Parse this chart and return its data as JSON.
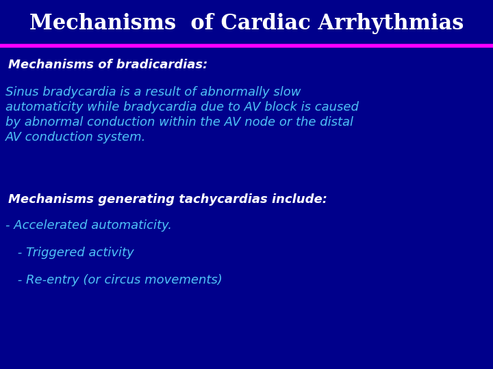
{
  "title": "Mechanisms  of Cardiac Arrhythmias",
  "title_color": "#ffffff",
  "title_fontsize": 22,
  "body_bg_color": "#00008B",
  "separator_color": "#FF00FF",
  "heading1": "Mechanisms of bradicardias:",
  "heading1_color": "#ffffff",
  "heading1_fontsize": 13,
  "body1_line1": "Sinus bradycardia is a result of abnormally slow",
  "body1_line2": "automaticity while bradycardia due to AV block is caused",
  "body1_line3": "by abnormal conduction within the AV node or the distal",
  "body1_line4": "AV conduction system.",
  "body1_color": "#4FC3F7",
  "body1_fontsize": 13,
  "heading2": "Mechanisms generating tachycardias include:",
  "heading2_color": "#ffffff",
  "heading2_fontsize": 13,
  "bullet1": "- Accelerated automaticity.",
  "bullet2": " - Triggered activity",
  "bullet3": " - Re-entry (or circus movements)",
  "bullet_color": "#4FC3F7",
  "bullet_fontsize": 13
}
